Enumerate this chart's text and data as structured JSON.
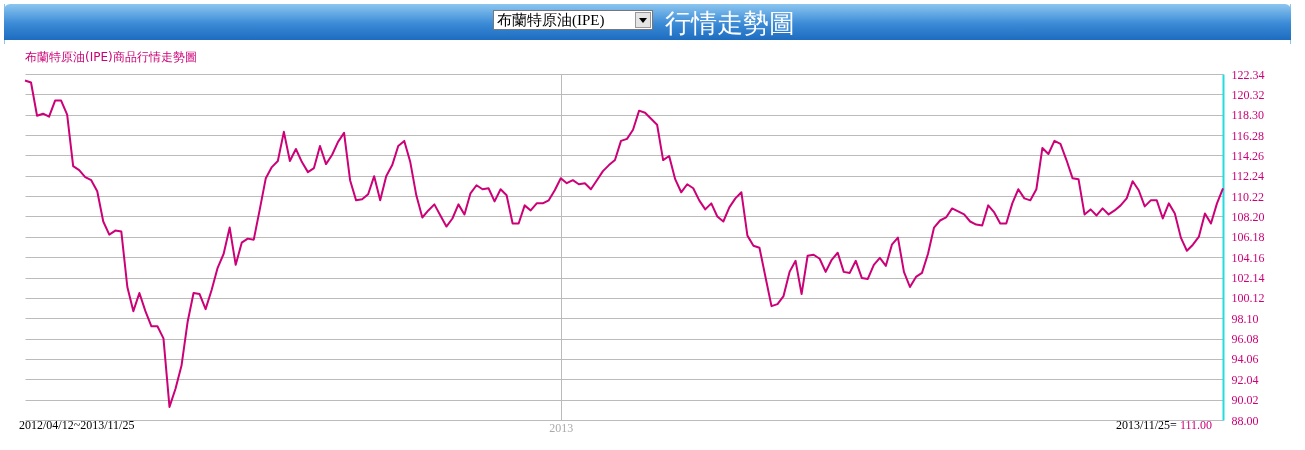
{
  "chart_data": {
    "type": "line",
    "title": "行情走勢圖",
    "subtitle": "布蘭特原油(IPE)商品行情走勢圖",
    "annotations": [
      "布蘭特原油(IPE)",
      "2012/04/12~2013/11/25",
      "2013/11/25=",
      "111.00"
    ],
    "categories": [
      null,
      null,
      null,
      null,
      null,
      null,
      null,
      null,
      null,
      null,
      null,
      null,
      null,
      null,
      null,
      null,
      null,
      null,
      null,
      null,
      null,
      null,
      null,
      null,
      null,
      null,
      null,
      null,
      null,
      null,
      null,
      null,
      null,
      null,
      null,
      null,
      null,
      null,
      null,
      null,
      null,
      null,
      null,
      null,
      null,
      null,
      null,
      null,
      null,
      null,
      null,
      null,
      null,
      null,
      null,
      null,
      null,
      null,
      null,
      null,
      null,
      null,
      null,
      null,
      null,
      null,
      null,
      null,
      null,
      null,
      null,
      null,
      null,
      null,
      null,
      null,
      null,
      null,
      null,
      null,
      null,
      null,
      null,
      null,
      null,
      null,
      null,
      null,
      null,
      "2013",
      null,
      null,
      null,
      null,
      null,
      null,
      null,
      null,
      null,
      null,
      null,
      null,
      null,
      null,
      null,
      null,
      null,
      null,
      null,
      null,
      null,
      null,
      null,
      null,
      null,
      null,
      null,
      null,
      null,
      null,
      null,
      null,
      null,
      null,
      null,
      null,
      null,
      null,
      null,
      null,
      null,
      null,
      null,
      null,
      null,
      null,
      null,
      null,
      null,
      null,
      null,
      null,
      null,
      null,
      null,
      null,
      null,
      null,
      null,
      null,
      null,
      null,
      null,
      null,
      null,
      null,
      null,
      null,
      null,
      null,
      null,
      null,
      null,
      null,
      null,
      null,
      null,
      null,
      null,
      null,
      null,
      null,
      null,
      null,
      null,
      null,
      null,
      null,
      null,
      null,
      null,
      null,
      null,
      null,
      null,
      null,
      null,
      null,
      null,
      null,
      null,
      null,
      null,
      null,
      null,
      null,
      null,
      null,
      null,
      null
    ],
    "series": [
      {
        "color": "#cc0077",
        "values": [
          121.7,
          121.5,
          118.2,
          118.4,
          118.1,
          119.7,
          119.7,
          118.3,
          113.2,
          112.8,
          112.1,
          111.8,
          110.7,
          107.7,
          106.4,
          106.8,
          106.7,
          101.2,
          98.8,
          100.6,
          98.8,
          97.3,
          97.3,
          96.1,
          89.3,
          91.1,
          93.4,
          97.7,
          100.6,
          100.5,
          99.0,
          100.9,
          103.1,
          104.5,
          107.1,
          103.4,
          105.6,
          106.0,
          105.9,
          108.9,
          112.0,
          113.1,
          113.7,
          116.6,
          113.7,
          114.9,
          113.6,
          112.6,
          113.0,
          115.2,
          113.4,
          114.3,
          115.6,
          116.5,
          111.8,
          109.8,
          109.9,
          110.4,
          112.2,
          109.8,
          112.2,
          113.3,
          115.2,
          115.7,
          113.6,
          110.3,
          108.1,
          108.8,
          109.4,
          108.3,
          107.2,
          108.0,
          109.4,
          108.4,
          110.5,
          111.3,
          110.9,
          111.0,
          109.7,
          110.9,
          110.3,
          107.5,
          107.5,
          109.3,
          108.8,
          109.5,
          109.5,
          109.8,
          110.8,
          112.0,
          111.5,
          111.8,
          111.4,
          111.5,
          110.9,
          111.8,
          112.7,
          113.3,
          113.8,
          115.7,
          115.9,
          116.8,
          118.7,
          118.5,
          117.9,
          117.3,
          113.8,
          114.2,
          111.9,
          110.6,
          111.4,
          111.0,
          109.8,
          108.9,
          109.5,
          108.2,
          107.7,
          109.1,
          110.0,
          110.6,
          106.3,
          105.3,
          105.1,
          102.2,
          99.3,
          99.5,
          100.3,
          102.7,
          103.8,
          100.5,
          104.3,
          104.4,
          104.0,
          102.7,
          103.9,
          104.6,
          102.7,
          102.6,
          103.8,
          102.1,
          102.0,
          103.4,
          104.1,
          103.3,
          105.4,
          106.1,
          102.7,
          101.2,
          102.2,
          102.6,
          104.5,
          107.1,
          107.8,
          108.1,
          109.0,
          108.7,
          108.4,
          107.7,
          107.4,
          107.3,
          109.3,
          108.6,
          107.5,
          107.5,
          109.5,
          110.9,
          110.0,
          109.8,
          110.9,
          115.0,
          114.4,
          115.7,
          115.4,
          113.8,
          112.0,
          111.9,
          108.4,
          108.9,
          108.3,
          109.0,
          108.4,
          108.8,
          109.3,
          110.0,
          111.7,
          110.8,
          109.2,
          109.8,
          109.8,
          108.0,
          109.5,
          108.5,
          106.1,
          104.8,
          105.4,
          106.2,
          108.5,
          107.5,
          109.5,
          111.0
        ]
      }
    ],
    "ylim": [
      88,
      122.34
    ],
    "yticks": [
      {
        "value": 88,
        "label": "88.00"
      },
      90.02,
      92.04,
      94.06,
      96.08,
      {
        "value": 98.1,
        "label": "98.10"
      },
      100.12,
      102.14,
      104.16,
      106.18,
      {
        "value": 108.2,
        "label": "108.20"
      },
      110.22,
      112.24,
      114.26,
      116.28,
      {
        "value": 118.3,
        "label": "118.30"
      },
      120.32,
      122.34
    ],
    "grid": true,
    "line_style": "solid"
  }
}
